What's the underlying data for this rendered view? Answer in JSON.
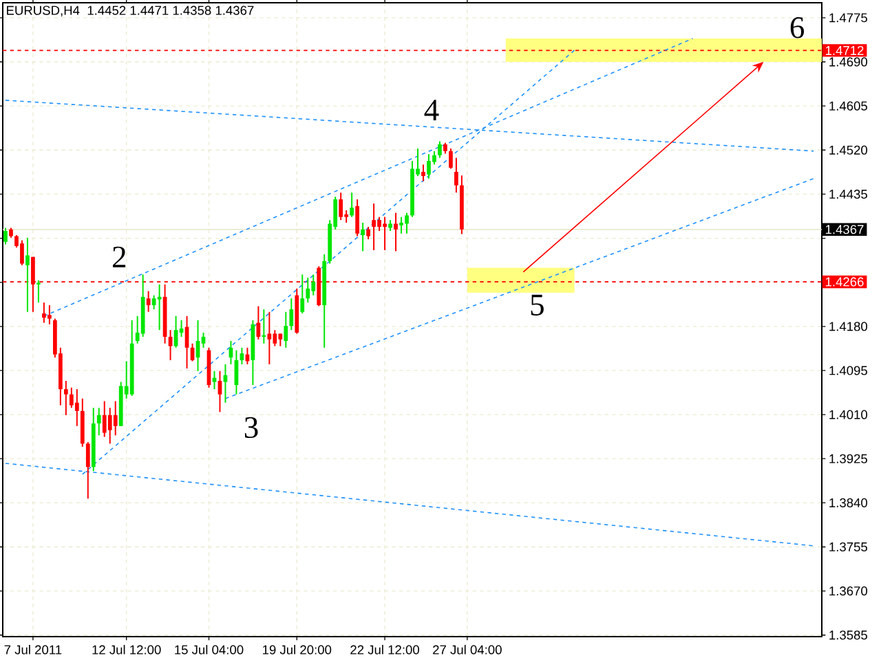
{
  "chart_data": {
    "type": "candlestick",
    "title": "EURUSD,H4",
    "subtitle": "1.4452 1.4471 1.4358 1.4367",
    "categories": [
      null,
      null,
      null,
      null,
      null,
      "7 Jul 2011",
      null,
      null,
      null,
      null,
      null,
      null,
      null,
      null,
      null,
      null,
      null,
      null,
      null,
      null,
      null,
      null,
      "12 Jul 12:00",
      null,
      null,
      null,
      null,
      null,
      null,
      null,
      null,
      null,
      null,
      null,
      null,
      null,
      null,
      "15 Jul 04:00",
      null,
      null,
      null,
      null,
      null,
      null,
      null,
      null,
      null,
      null,
      null,
      null,
      null,
      null,
      null,
      "19 Jul 20:00",
      null,
      null,
      null,
      null,
      null,
      null,
      null,
      null,
      null,
      null,
      null,
      null,
      null,
      null,
      null,
      "22 Jul 12:00",
      null,
      null,
      null,
      null,
      null,
      null,
      null,
      null,
      null,
      null,
      null,
      null,
      null,
      null,
      "27 Jul 04:00",
      null,
      null,
      null,
      null,
      null,
      null,
      null,
      null,
      null,
      null,
      null,
      null,
      null,
      null,
      null,
      null,
      null,
      null,
      null,
      null,
      null,
      null,
      null,
      null,
      null,
      null,
      null,
      null,
      null,
      null,
      null,
      null,
      null,
      null,
      null,
      null,
      null,
      null,
      null,
      null,
      null,
      null,
      null,
      null,
      null,
      null,
      null,
      null,
      null,
      null,
      null,
      null,
      null,
      null,
      null,
      null,
      null,
      null,
      null,
      null,
      null,
      null,
      null,
      null
    ],
    "ohlc": [
      [
        1.4343,
        1.437,
        1.4338,
        1.4364
      ],
      [
        1.4367,
        1.437,
        1.4351,
        1.4354
      ],
      [
        1.4354,
        1.4356,
        1.4332,
        1.4335
      ],
      [
        1.434,
        1.4346,
        1.4298,
        1.4301
      ],
      [
        1.4298,
        1.4351,
        1.4208,
        1.4317
      ],
      [
        1.4314,
        1.4314,
        1.4208,
        1.4261
      ],
      [
        1.4261,
        1.4269,
        1.4226,
        1.4264
      ],
      [
        1.4205,
        1.4226,
        1.4187,
        1.4197
      ],
      [
        1.4202,
        1.4221,
        1.4184,
        1.4195
      ],
      [
        1.4192,
        1.4195,
        1.412,
        1.4126
      ],
      [
        1.4128,
        1.4139,
        1.4028,
        1.4059
      ],
      [
        1.4059,
        1.4075,
        1.4009,
        1.4049
      ],
      [
        1.4049,
        1.4062,
        1.4023,
        1.4028
      ],
      [
        1.4033,
        1.4059,
        1.3988,
        1.4017
      ],
      [
        1.4017,
        1.4041,
        1.3948,
        1.3954
      ],
      [
        1.3954,
        1.3957,
        1.3848,
        1.3909
      ],
      [
        1.3909,
        1.4023,
        1.3901,
        1.3993
      ],
      [
        1.3993,
        1.4023,
        1.397,
        1.4009
      ],
      [
        1.4009,
        1.4036,
        1.3967,
        1.3975
      ],
      [
        1.4009,
        1.4023,
        1.3954,
        1.398
      ],
      [
        1.4009,
        1.4036,
        1.397,
        1.3988
      ],
      [
        1.3988,
        1.4073,
        1.3988,
        1.4065
      ],
      [
        1.4049,
        1.4113,
        1.4041,
        1.4065
      ],
      [
        1.4049,
        1.4192,
        1.4046,
        1.4147
      ],
      [
        1.4152,
        1.42,
        1.4147,
        1.4168
      ],
      [
        1.4166,
        1.428,
        1.416,
        1.4237
      ],
      [
        1.4234,
        1.4248,
        1.4208,
        1.4221
      ],
      [
        1.4221,
        1.424,
        1.4213,
        1.4234
      ],
      [
        1.4232,
        1.4261,
        1.4173,
        1.4237
      ],
      [
        1.4237,
        1.4261,
        1.4147,
        1.416
      ],
      [
        1.416,
        1.4173,
        1.4115,
        1.4142
      ],
      [
        1.4142,
        1.42,
        1.4139,
        1.4173
      ],
      [
        1.4168,
        1.4192,
        1.416,
        1.4176
      ],
      [
        1.4179,
        1.42,
        1.4099,
        1.4139
      ],
      [
        1.4139,
        1.4147,
        1.4113,
        1.4115
      ],
      [
        1.412,
        1.4192,
        1.4094,
        1.4152
      ],
      [
        1.4147,
        1.4168,
        1.4139,
        1.416
      ],
      [
        1.4134,
        1.4139,
        1.4062,
        1.4067
      ],
      [
        1.4073,
        1.4094,
        1.4059,
        1.4081
      ],
      [
        1.4075,
        1.4094,
        1.4015,
        1.4049
      ],
      [
        1.4073,
        1.4107,
        1.4033,
        1.4086
      ],
      [
        1.412,
        1.4152,
        1.4107,
        1.4139
      ],
      [
        1.4067,
        1.4134,
        1.4049,
        1.4115
      ],
      [
        1.4115,
        1.4139,
        1.4107,
        1.4128
      ],
      [
        1.4126,
        1.4139,
        1.4107,
        1.4113
      ],
      [
        1.4115,
        1.4192,
        1.4067,
        1.4184
      ],
      [
        1.4187,
        1.4219,
        1.4155,
        1.416
      ],
      [
        1.416,
        1.4213,
        1.4147,
        1.4163
      ],
      [
        1.4166,
        1.4208,
        1.4107,
        1.4155
      ],
      [
        1.4166,
        1.4173,
        1.4142,
        1.4147
      ],
      [
        1.4166,
        1.4166,
        1.4142,
        1.4155
      ],
      [
        1.4152,
        1.4208,
        1.4139,
        1.4181
      ],
      [
        1.4181,
        1.4234,
        1.4173,
        1.4213
      ],
      [
        1.424,
        1.4253,
        1.4166,
        1.4168
      ],
      [
        1.4208,
        1.428,
        1.4205,
        1.4234
      ],
      [
        1.4234,
        1.4274,
        1.4226,
        1.4253
      ],
      [
        1.4248,
        1.428,
        1.424,
        1.4266
      ],
      [
        1.4293,
        1.4296,
        1.4219,
        1.4221
      ],
      [
        1.4221,
        1.4319,
        1.4139,
        1.4306
      ],
      [
        1.4306,
        1.4385,
        1.4301,
        1.4378
      ],
      [
        1.4372,
        1.443,
        1.4367,
        1.4425
      ],
      [
        1.4425,
        1.4438,
        1.4385,
        1.4391
      ],
      [
        1.4396,
        1.4404,
        1.438,
        1.4391
      ],
      [
        1.4394,
        1.4438,
        1.4391,
        1.4409
      ],
      [
        1.4412,
        1.4425,
        1.4354,
        1.4359
      ],
      [
        1.4356,
        1.438,
        1.4325,
        1.4367
      ],
      [
        1.4367,
        1.4372,
        1.4348,
        1.4354
      ],
      [
        1.4385,
        1.4417,
        1.4327,
        1.4372
      ],
      [
        1.4385,
        1.4391,
        1.4364,
        1.4372
      ],
      [
        1.4378,
        1.4391,
        1.4327,
        1.4372
      ],
      [
        1.437,
        1.4385,
        1.4364,
        1.4378
      ],
      [
        1.4378,
        1.4399,
        1.4325,
        1.4367
      ],
      [
        1.4375,
        1.4391,
        1.4359,
        1.438
      ],
      [
        1.4378,
        1.4399,
        1.4359,
        1.4394
      ],
      [
        1.4394,
        1.4499,
        1.4391,
        1.4484
      ],
      [
        1.4473,
        1.4523,
        1.447,
        1.4484
      ],
      [
        1.4478,
        1.4492,
        1.446,
        1.447
      ],
      [
        1.4473,
        1.4512,
        1.4465,
        1.4499
      ],
      [
        1.4497,
        1.4518,
        1.4492,
        1.451
      ],
      [
        1.451,
        1.4537,
        1.4505,
        1.4531
      ],
      [
        1.4531,
        1.4534,
        1.4513,
        1.4518
      ],
      [
        1.4518,
        1.4523,
        1.4484,
        1.4486
      ],
      [
        1.4478,
        1.4505,
        1.4438,
        1.4452
      ],
      [
        1.4452,
        1.4471,
        1.4358,
        1.4367
      ],
      null,
      null,
      null,
      null,
      null,
      null,
      null,
      null,
      null,
      null,
      null,
      null,
      null,
      null,
      null,
      null,
      null,
      null,
      null,
      null,
      null,
      null,
      null,
      null,
      null,
      null,
      null,
      null,
      null,
      null,
      null,
      null,
      null,
      null,
      null,
      null,
      null,
      null,
      null,
      null,
      null,
      null,
      null,
      null,
      null,
      null,
      null,
      null,
      null,
      null,
      null,
      null,
      null,
      null,
      null,
      null,
      null,
      null,
      null,
      null,
      null,
      null,
      null,
      null,
      null
    ],
    "series": [
      {
        "type": "line",
        "color": "#1e90ff",
        "line_style": "dashed",
        "values": [
          1.3916,
          null,
          null,
          null,
          null,
          null,
          null,
          null,
          null,
          null,
          null,
          null,
          null,
          null,
          null,
          null,
          null,
          null,
          null,
          null,
          null,
          null,
          null,
          null,
          null,
          null,
          null,
          null,
          null,
          null,
          null,
          null,
          null,
          null,
          null,
          null,
          null,
          null,
          null,
          null,
          null,
          null,
          null,
          null,
          null,
          null,
          null,
          null,
          null,
          null,
          null,
          null,
          null,
          null,
          null,
          null,
          null,
          null,
          null,
          null,
          null,
          null,
          null,
          null,
          null,
          null,
          null,
          null,
          null,
          null,
          null,
          null,
          null,
          null,
          null,
          null,
          null,
          null,
          null,
          null,
          null,
          null,
          null,
          null,
          null,
          null,
          null,
          null,
          null,
          null,
          null,
          null,
          null,
          null,
          null,
          null,
          null,
          null,
          null,
          null,
          null,
          null,
          null,
          null,
          null,
          null,
          null,
          null,
          null,
          null,
          null,
          null,
          null,
          null,
          null,
          null,
          null,
          null,
          null,
          null,
          null,
          null,
          null,
          null,
          null,
          null,
          null,
          null,
          null,
          null,
          null,
          null,
          null,
          null,
          null,
          null,
          null,
          null,
          null,
          null,
          null,
          null,
          null,
          null,
          null,
          null,
          null,
          1.3757,
          null
        ]
      },
      {
        "type": "line",
        "color": "#1e90ff",
        "line_style": "dashed",
        "values": [
          1.4616,
          null,
          null,
          null,
          null,
          null,
          null,
          null,
          null,
          null,
          null,
          null,
          null,
          null,
          null,
          null,
          null,
          null,
          null,
          null,
          null,
          null,
          null,
          null,
          null,
          null,
          null,
          null,
          null,
          null,
          null,
          null,
          null,
          null,
          null,
          null,
          null,
          null,
          null,
          null,
          null,
          null,
          null,
          null,
          null,
          null,
          null,
          null,
          null,
          null,
          null,
          null,
          null,
          null,
          null,
          null,
          null,
          null,
          null,
          null,
          null,
          null,
          null,
          null,
          null,
          null,
          null,
          null,
          null,
          null,
          null,
          null,
          null,
          null,
          null,
          null,
          null,
          null,
          null,
          null,
          null,
          null,
          null,
          null,
          null,
          null,
          null,
          null,
          null,
          null,
          null,
          null,
          null,
          null,
          null,
          null,
          null,
          null,
          null,
          null,
          null,
          null,
          null,
          null,
          null,
          null,
          null,
          null,
          null,
          null,
          null,
          null,
          null,
          null,
          null,
          null,
          null,
          null,
          null,
          null,
          null,
          null,
          null,
          null,
          null,
          null,
          null,
          null,
          null,
          null,
          null,
          null,
          null,
          null,
          null,
          null,
          null,
          null,
          null,
          null,
          null,
          null,
          null,
          null,
          null,
          null,
          null,
          1.4518,
          null
        ]
      },
      {
        "type": "line",
        "color": "#1e90ff",
        "line_style": "dashed",
        "values": [
          null,
          null,
          null,
          null,
          null,
          null,
          null,
          null,
          null,
          null,
          null,
          null,
          null,
          null,
          null,
          null,
          null,
          null,
          null,
          null,
          null,
          null,
          null,
          null,
          null,
          null,
          null,
          null,
          null,
          null,
          null,
          null,
          null,
          null,
          null,
          null,
          null,
          null,
          null,
          null,
          1.4041,
          null,
          null,
          null,
          null,
          null,
          null,
          null,
          null,
          null,
          null,
          null,
          null,
          null,
          null,
          null,
          null,
          null,
          null,
          null,
          null,
          null,
          null,
          null,
          null,
          null,
          null,
          null,
          null,
          null,
          null,
          null,
          null,
          null,
          null,
          null,
          null,
          null,
          null,
          null,
          null,
          null,
          null,
          null,
          null,
          null,
          null,
          null,
          null,
          null,
          null,
          null,
          null,
          null,
          null,
          null,
          null,
          null,
          null,
          null,
          null,
          null,
          null,
          null,
          null,
          null,
          null,
          null,
          null,
          null,
          null,
          null,
          null,
          null,
          null,
          null,
          null,
          null,
          null,
          null,
          null,
          null,
          null,
          null,
          null,
          null,
          null,
          null,
          null,
          null,
          null,
          null,
          null,
          null,
          null,
          null,
          null,
          null,
          null,
          null,
          null,
          null,
          null,
          null,
          null,
          null,
          null,
          1.4465,
          null
        ]
      },
      {
        "type": "line",
        "color": "#1e90ff",
        "line_style": "dashed",
        "values": [
          null,
          null,
          null,
          null,
          null,
          null,
          null,
          1.42,
          null,
          null,
          null,
          null,
          null,
          null,
          null,
          null,
          null,
          null,
          null,
          null,
          null,
          null,
          null,
          null,
          null,
          null,
          null,
          null,
          null,
          null,
          null,
          null,
          null,
          null,
          null,
          null,
          null,
          null,
          null,
          null,
          null,
          null,
          null,
          null,
          null,
          null,
          null,
          null,
          null,
          null,
          null,
          null,
          null,
          null,
          null,
          null,
          null,
          null,
          null,
          null,
          null,
          null,
          null,
          null,
          null,
          null,
          null,
          null,
          null,
          null,
          null,
          null,
          null,
          null,
          null,
          null,
          null,
          null,
          null,
          null,
          null,
          null,
          null,
          null,
          null,
          null,
          null,
          null,
          null,
          null,
          null,
          null,
          null,
          null,
          null,
          null,
          null,
          null,
          null,
          null,
          null,
          null,
          null,
          null,
          null,
          null,
          null,
          null,
          null,
          null,
          null,
          null,
          null,
          null,
          null,
          null,
          null,
          null,
          null,
          null,
          null,
          null,
          null,
          null,
          null,
          1.4735,
          null,
          null,
          null,
          null,
          null,
          null,
          null,
          null,
          null,
          null,
          null,
          null,
          null,
          null,
          null,
          null,
          null,
          null,
          null,
          null,
          null,
          null,
          null
        ]
      },
      {
        "type": "line",
        "color": "#1e90ff",
        "line_style": "dashed",
        "values": [
          null,
          null,
          null,
          null,
          null,
          null,
          null,
          null,
          null,
          null,
          null,
          null,
          null,
          null,
          1.3895,
          null,
          null,
          null,
          null,
          null,
          null,
          null,
          null,
          null,
          null,
          null,
          null,
          null,
          null,
          null,
          null,
          null,
          null,
          null,
          null,
          null,
          null,
          null,
          null,
          null,
          null,
          null,
          null,
          null,
          null,
          null,
          null,
          null,
          null,
          null,
          null,
          null,
          null,
          null,
          null,
          null,
          null,
          null,
          null,
          null,
          null,
          null,
          null,
          null,
          null,
          null,
          null,
          null,
          null,
          null,
          null,
          null,
          null,
          null,
          null,
          null,
          null,
          null,
          null,
          null,
          null,
          null,
          null,
          null,
          null,
          null,
          null,
          null,
          null,
          null,
          null,
          null,
          null,
          null,
          null,
          null,
          null,
          null,
          null,
          null,
          null,
          null,
          null,
          null,
          1.4717,
          null,
          null,
          null,
          null,
          null,
          null,
          null,
          null,
          null,
          null,
          null,
          null,
          null,
          null,
          null,
          null,
          null,
          null,
          null,
          null,
          null,
          null,
          null,
          null,
          null,
          null,
          null,
          null,
          null,
          null,
          null,
          null,
          null,
          null,
          null,
          null,
          null,
          null,
          null,
          null,
          null,
          null,
          null,
          null
        ]
      }
    ],
    "ylim": [
      1.3582,
      1.4804
    ],
    "yticks": [
      1.4775,
      {
        "value": 1.469,
        "label": "1.4690"
      },
      1.4605,
      {
        "value": 1.452,
        "label": "1.4520"
      },
      1.4435,
      {
        "value": 1.435,
        "label": null
      },
      {
        "value": 1.4265,
        "label": null
      },
      {
        "value": 1.418,
        "label": "1.4180"
      },
      1.4095,
      {
        "value": 1.401,
        "label": "1.4010"
      },
      1.3925,
      {
        "value": 1.384,
        "label": "1.3840"
      },
      1.3755,
      {
        "value": 1.367,
        "label": "1.3670"
      },
      1.3585
    ],
    "ref_lines": [
      {
        "axis": "y",
        "value": 1.4712,
        "label": "1.4712",
        "color": "#ff0000",
        "line_style": "dashed"
      },
      {
        "axis": "y",
        "value": 1.4367,
        "label": "1.4367",
        "color": "#e6e6c8",
        "line_style": "solid"
      },
      {
        "axis": "y",
        "value": 1.4266,
        "label": "1.4266",
        "color": "#ff0000",
        "line_style": "dashed"
      }
    ],
    "bands": [
      {
        "axis": "y",
        "from": 1.469,
        "to": 1.4735,
        "color": "#ffff80"
      },
      {
        "axis": "y",
        "from": 1.4245,
        "to": 1.4293,
        "color": "#ffff80"
      }
    ],
    "annotations": [
      "2",
      "3",
      "4",
      {
        "text": "5",
        "y": 1.4266
      },
      {
        "text": "6",
        "y": 1.4712
      }
    ],
    "grid": true
  }
}
